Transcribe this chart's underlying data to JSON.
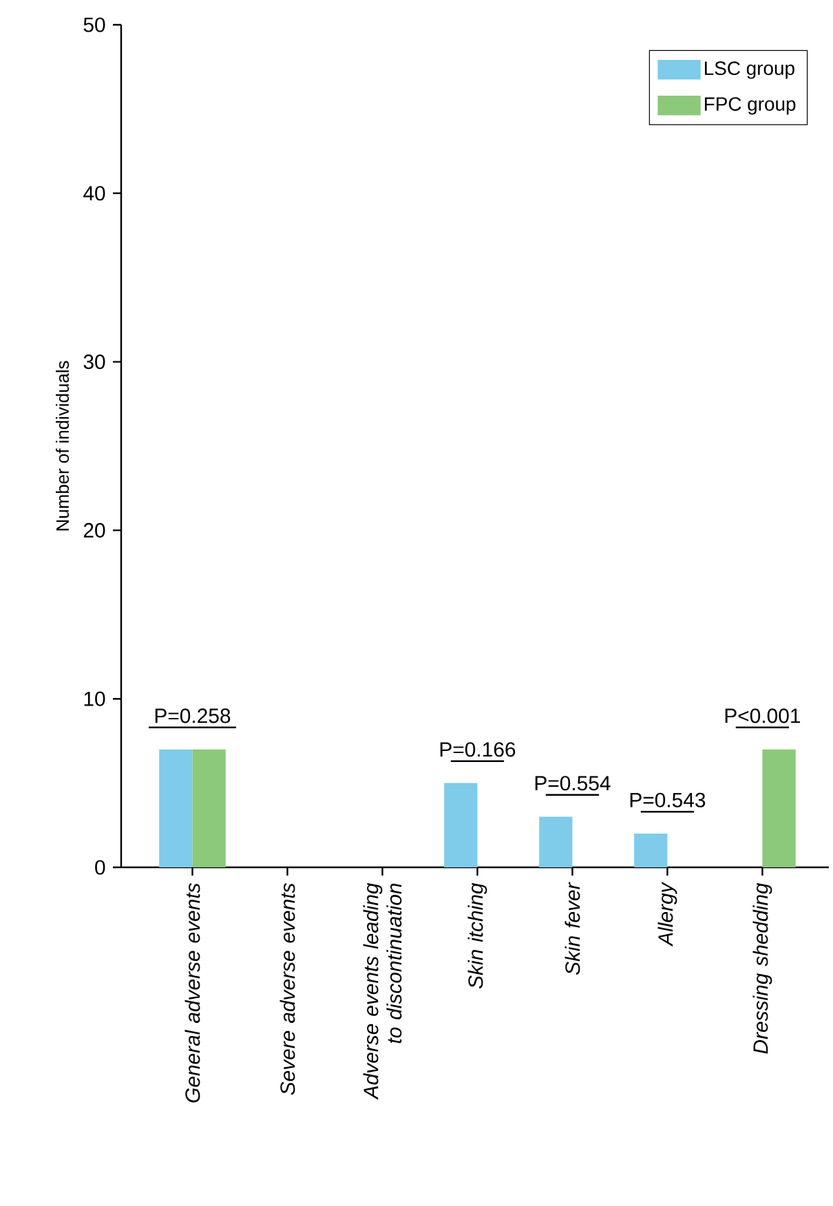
{
  "chart_data": {
    "type": "bar",
    "ylabel": "Number of individuals",
    "categories": [
      "General adverse events",
      "Severe adverse events",
      "Adverse events leading to discontinuation",
      "Skin itching",
      "Skin fever",
      "Allergy",
      "Dressing shedding"
    ],
    "series": [
      {
        "name": "LSC group",
        "color": "#7ecbea",
        "values": [
          7,
          0,
          0,
          5,
          3,
          2,
          0
        ]
      },
      {
        "name": "FPC group",
        "color": "#8cc97a",
        "values": [
          7,
          0,
          0,
          0,
          0,
          0,
          7
        ]
      }
    ],
    "ylim": [
      0,
      50
    ],
    "yticks": [
      0,
      10,
      20,
      30,
      40,
      50
    ],
    "legend": "top right",
    "grid": false,
    "annotations": [
      "P=0.258",
      "P=0.166",
      "P=0.554",
      "P=0.543",
      "P<0.001"
    ]
  }
}
